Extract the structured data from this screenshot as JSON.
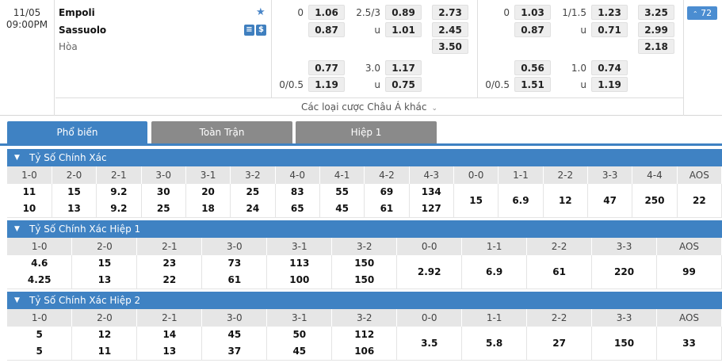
{
  "match": {
    "date": "11/05",
    "time": "09:00PM",
    "home": "Empoli",
    "away": "Sassuolo",
    "draw_label": "Hòa",
    "more_bets_label": "Các loại cược Châu Á khác",
    "more_count": "72",
    "ft": {
      "hdp_line1_home": "0",
      "hdp_home": "1.06",
      "hdp_away": "0.87",
      "ou_line1": "2.5/3",
      "ou_over": "0.89",
      "ou_under_label": "u",
      "ou_under": "1.01",
      "x12_home": "2.73",
      "x12_away": "2.45",
      "x12_draw": "3.50",
      "hdp2_home": "0.77",
      "hdp2_line": "0/0.5",
      "hdp2_away": "1.19",
      "ou2_line": "3.0",
      "ou2_over": "1.17",
      "ou2_under_label": "u",
      "ou2_under": "0.75"
    },
    "ht": {
      "hdp_line1_home": "0",
      "hdp_home": "1.03",
      "hdp_away": "0.87",
      "ou_line1": "1/1.5",
      "ou_over": "1.23",
      "ou_under_label": "u",
      "ou_under": "0.71",
      "x12_home": "3.25",
      "x12_away": "2.99",
      "x12_draw": "2.18",
      "hdp2_home": "0.56",
      "hdp2_line": "0/0.5",
      "hdp2_away": "1.51",
      "ou2_line": "1.0",
      "ou2_over": "0.74",
      "ou2_under_label": "u",
      "ou2_under": "1.19"
    }
  },
  "tabs": [
    "Phổ biến",
    "Toàn Trận",
    "Hiệp 1"
  ],
  "sections": [
    {
      "title": "Tỷ Số Chính Xác",
      "headers": [
        "1-0",
        "2-0",
        "2-1",
        "3-0",
        "3-1",
        "3-2",
        "4-0",
        "4-1",
        "4-2",
        "4-3",
        "0-0",
        "1-1",
        "2-2",
        "3-3",
        "4-4",
        "AOS"
      ],
      "home": [
        "11",
        "15",
        "9.2",
        "30",
        "20",
        "25",
        "83",
        "55",
        "69",
        "134"
      ],
      "away": [
        "10",
        "13",
        "9.2",
        "25",
        "18",
        "24",
        "65",
        "45",
        "61",
        "127"
      ],
      "single": [
        "15",
        "6.9",
        "12",
        "47",
        "250",
        "22"
      ]
    },
    {
      "title": "Tỷ Số Chính Xác Hiệp 1",
      "headers": [
        "1-0",
        "2-0",
        "2-1",
        "3-0",
        "3-1",
        "3-2",
        "0-0",
        "1-1",
        "2-2",
        "3-3",
        "AOS"
      ],
      "home": [
        "4.6",
        "15",
        "23",
        "73",
        "113",
        "150"
      ],
      "away": [
        "4.25",
        "13",
        "22",
        "61",
        "100",
        "150"
      ],
      "single": [
        "2.92",
        "6.9",
        "61",
        "220",
        "99"
      ]
    },
    {
      "title": "Tỷ Số Chính Xác Hiệp 2",
      "headers": [
        "1-0",
        "2-0",
        "2-1",
        "3-0",
        "3-1",
        "3-2",
        "0-0",
        "1-1",
        "2-2",
        "3-3",
        "AOS"
      ],
      "home": [
        "5",
        "12",
        "14",
        "45",
        "50",
        "112"
      ],
      "away": [
        "5",
        "11",
        "13",
        "37",
        "45",
        "106"
      ],
      "single": [
        "3.5",
        "5.8",
        "27",
        "150",
        "33"
      ]
    }
  ],
  "icons": {
    "favorite": "star-icon",
    "stats": "stats-icon",
    "live": "dollar-icon",
    "expand": "chevron-up-icon",
    "collapse": "caret-down-icon"
  },
  "colors": {
    "accent": "#3f82c3",
    "tab_inactive": "#8a8a8a",
    "header_bg": "#e6e6e6"
  }
}
